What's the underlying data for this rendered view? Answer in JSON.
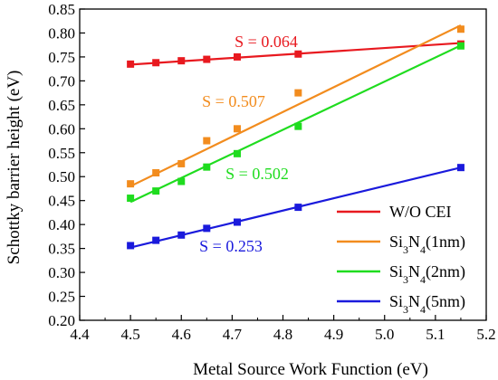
{
  "chart_data": {
    "type": "scatter",
    "title": "",
    "xlabel": "Metal Source Work Function (eV)",
    "ylabel": "Schottky barrier height (eV)",
    "xlim": [
      4.4,
      5.2
    ],
    "ylim": [
      0.2,
      0.85
    ],
    "xticks": [
      "4.4",
      "4.5",
      "4.6",
      "4.7",
      "4.8",
      "4.9",
      "5.0",
      "5.1",
      "5.2"
    ],
    "yticks": [
      "0.20",
      "0.25",
      "0.30",
      "0.35",
      "0.40",
      "0.45",
      "0.50",
      "0.55",
      "0.60",
      "0.65",
      "0.70",
      "0.75",
      "0.80",
      "0.85"
    ],
    "grid": false,
    "legend_position": "bottom-right",
    "x": [
      4.5,
      4.55,
      4.6,
      4.65,
      4.71,
      4.83,
      5.15
    ],
    "series": [
      {
        "name": "W/O CEI",
        "name_main": "W/O CEI",
        "name_sub": [],
        "name_end": "",
        "color": "#e8191f",
        "values": [
          0.735,
          0.738,
          0.742,
          0.745,
          0.75,
          0.756,
          0.777
        ],
        "fit": [
          0.734,
          0.779
        ],
        "slope_label": "S = 0.064"
      },
      {
        "name": "Si3N4(1nm)",
        "name_main": "Si",
        "name_sub": [
          "3",
          "4"
        ],
        "name_mid": "N",
        "name_end": "(1nm)",
        "color": "#f28c1e",
        "values": [
          0.485,
          0.508,
          0.527,
          0.575,
          0.6,
          0.675,
          0.808
        ],
        "fit": [
          0.48,
          0.816
        ],
        "slope_label": "S = 0.507"
      },
      {
        "name": "Si3N4(2nm)",
        "name_main": "Si",
        "name_sub": [
          "3",
          "4"
        ],
        "name_mid": "N",
        "name_end": "(2nm)",
        "color": "#1fdc1f",
        "values": [
          0.455,
          0.47,
          0.49,
          0.52,
          0.548,
          0.605,
          0.773
        ],
        "fit": [
          0.447,
          0.774
        ],
        "slope_label": "S = 0.502"
      },
      {
        "name": "Si3N4(5nm)",
        "name_main": "Si",
        "name_sub": [
          "3",
          "4"
        ],
        "name_mid": "N",
        "name_end": "(5nm)",
        "color": "#1a1adc",
        "values": [
          0.356,
          0.367,
          0.378,
          0.392,
          0.405,
          0.436,
          0.519
        ],
        "fit": [
          0.352,
          0.519
        ],
        "slope_label": "S = 0.253"
      }
    ]
  }
}
